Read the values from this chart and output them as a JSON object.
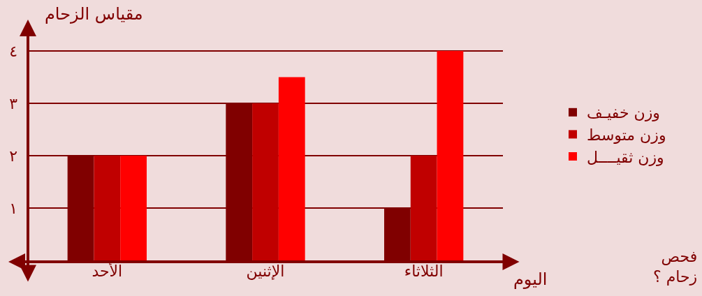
{
  "chart_data": {
    "type": "bar",
    "xlabel": "اليوم",
    "ylabel": "مقياس الزحام",
    "categories": [
      "الأحد",
      "الإثنين",
      "الثلاثاء"
    ],
    "series": [
      {
        "name": "وزن خفيـف",
        "color": "#800000",
        "values": [
          2,
          3,
          1
        ]
      },
      {
        "name": "وزن متوسط",
        "color": "#c00000",
        "values": [
          2,
          3,
          2
        ]
      },
      {
        "name": "وزن ثقيــــل",
        "color": "#ff0000",
        "values": [
          2,
          3.5,
          4
        ]
      }
    ],
    "ylim": [
      0,
      4.6
    ],
    "yticks": [
      {
        "value": 1,
        "label": "١"
      },
      {
        "value": 2,
        "label": "٢"
      },
      {
        "value": 3,
        "label": "٣"
      },
      {
        "value": 4,
        "label": "٤"
      }
    ],
    "grid": "y",
    "legend": "right",
    "annotations": [
      "فحص\nزحام ؟"
    ]
  }
}
